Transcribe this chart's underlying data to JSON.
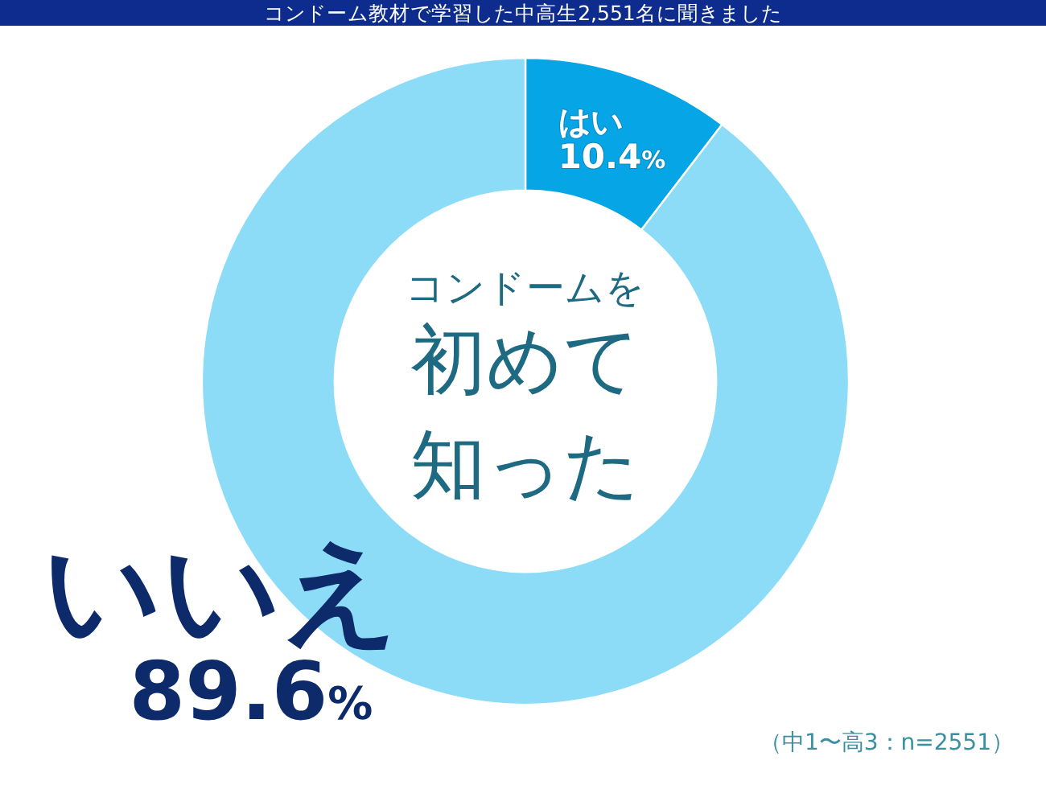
{
  "chart_data": {
    "type": "donut",
    "title": "コンドーム教材で学習した中高生2,551名に聞きました",
    "subtitle": "コンドームを初めて知った",
    "categories": [
      "はい",
      "いいえ"
    ],
    "values": [
      10.4,
      89.6
    ],
    "colors": [
      "#05a5e6",
      "#8cdcf8"
    ],
    "value_labels": [
      "10.4%",
      "89.6%"
    ],
    "annotations": [
      "（中1〜高3：n=2551）"
    ]
  }
}
